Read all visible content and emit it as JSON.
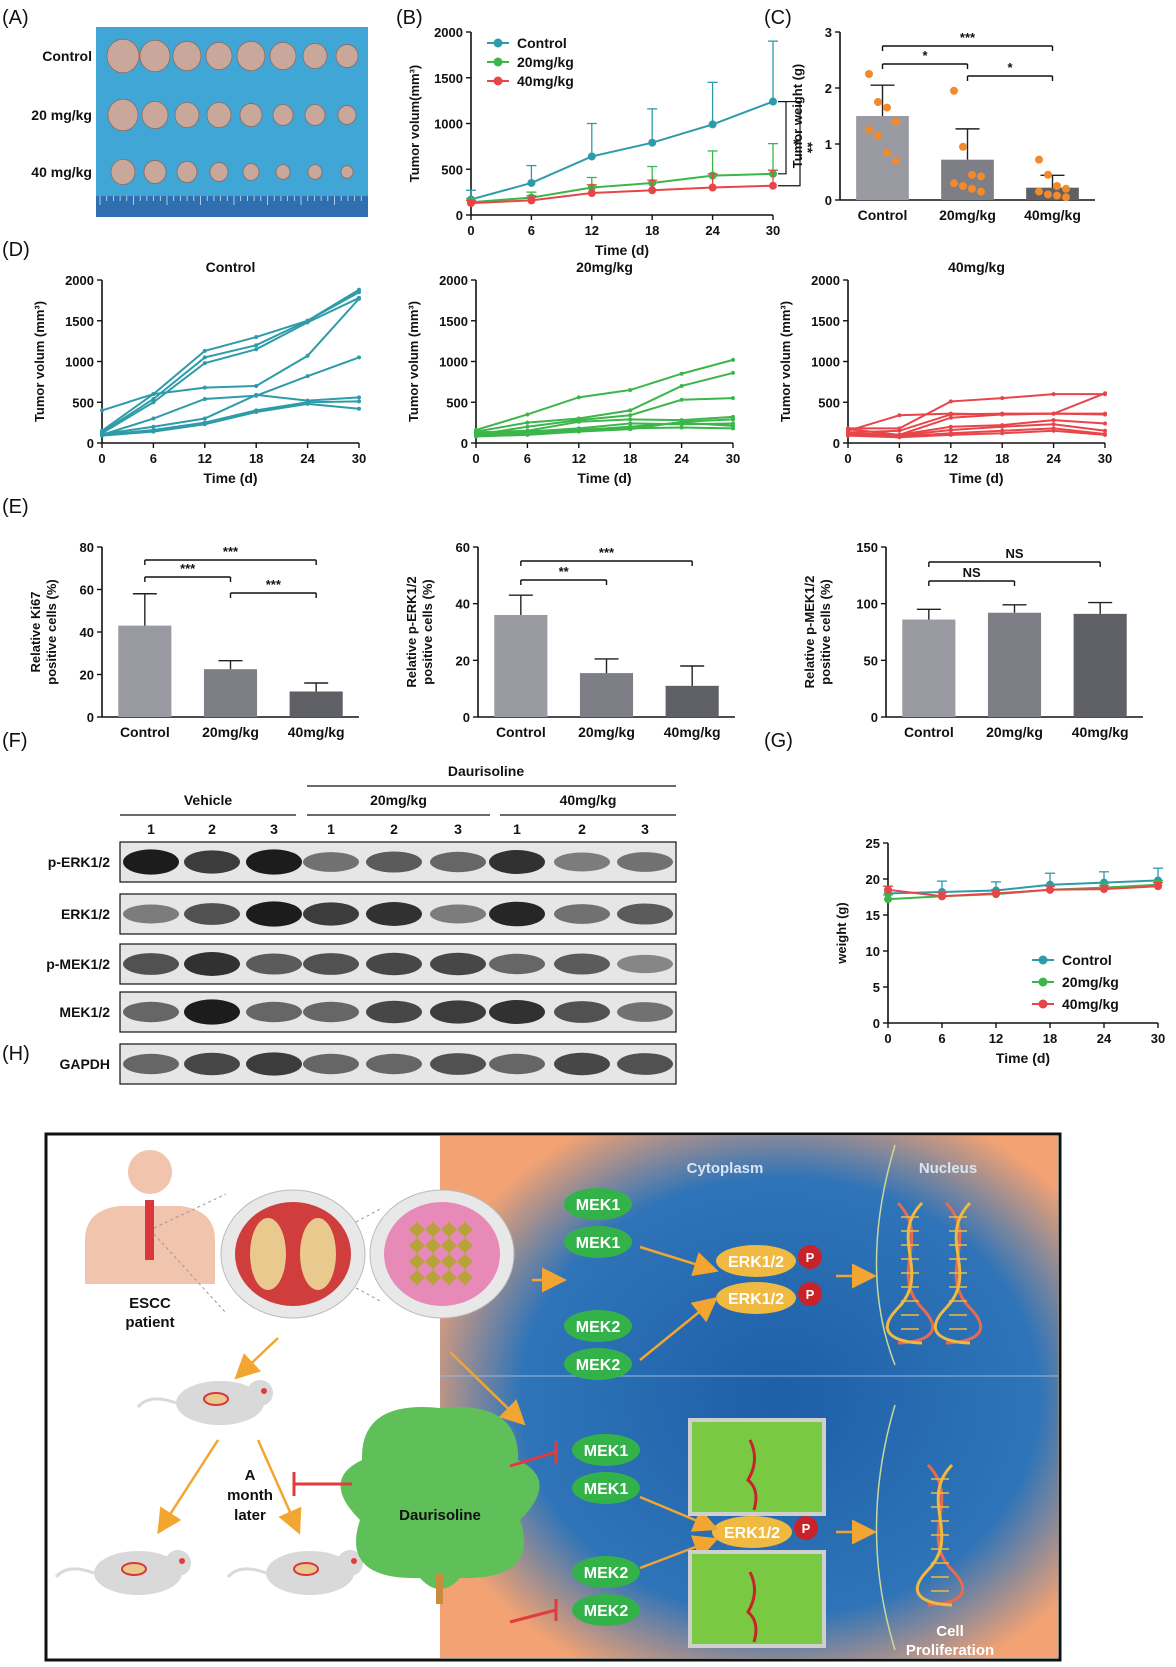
{
  "panel_labels": [
    "(A)",
    "(B)",
    "(C)",
    "(D)",
    "(E)",
    "(F)",
    "(G)",
    "(H)"
  ],
  "photo": {
    "rows": [
      "Control",
      "20 mg/kg",
      "40 mg/kg"
    ],
    "colors": {
      "background": "#3fa6d6",
      "ruler": "#2f6fb0",
      "tumor": "#c9a89b"
    }
  },
  "chart_data": [
    {
      "id": "B",
      "type": "line",
      "x": [
        0,
        6,
        12,
        18,
        24,
        30
      ],
      "series": [
        {
          "name": "Control",
          "color": "#2e9ba8",
          "values": [
            170,
            350,
            640,
            790,
            990,
            1240
          ],
          "err": [
            100,
            190,
            360,
            370,
            460,
            660
          ]
        },
        {
          "name": "20mg/kg",
          "color": "#3cb54a",
          "values": [
            140,
            190,
            300,
            350,
            430,
            450
          ],
          "err": [
            40,
            60,
            110,
            180,
            270,
            330
          ]
        },
        {
          "name": "40mg/kg",
          "color": "#e8454a",
          "values": [
            130,
            160,
            240,
            270,
            300,
            320
          ],
          "err": [
            30,
            50,
            90,
            110,
            150,
            170
          ]
        }
      ],
      "xlabel": "Time  (d)",
      "ylabel": "Tumor volum(mm³)",
      "ylim": [
        0,
        2000
      ],
      "yticks": [
        0,
        500,
        1000,
        1500,
        2000
      ],
      "annotations": [
        "*",
        "**"
      ],
      "legend": "top-left"
    },
    {
      "id": "C",
      "type": "bar",
      "categories": [
        "Control",
        "20mg/kg",
        "40mg/kg"
      ],
      "values": [
        1.5,
        0.72,
        0.22
      ],
      "err": [
        0.55,
        0.55,
        0.22
      ],
      "colors": [
        "#9a9aa2",
        "#7e7e86",
        "#5f5f66"
      ],
      "points": [
        [
          2.25,
          1.75,
          1.65,
          1.4,
          1.25,
          1.15,
          0.85,
          0.7
        ],
        [
          1.95,
          0.95,
          0.45,
          0.42,
          0.3,
          0.25,
          0.2,
          0.15
        ],
        [
          0.72,
          0.45,
          0.25,
          0.2,
          0.15,
          0.1,
          0.08,
          0.05
        ]
      ],
      "point_color": "#f08a2d",
      "ylabel": "Tumor weight  (g)",
      "ylim": [
        0,
        3
      ],
      "yticks": [
        0,
        1,
        2,
        3
      ],
      "significance": [
        {
          "from": 0,
          "to": 2,
          "label": "***"
        },
        {
          "from": 0,
          "to": 1,
          "label": "*"
        },
        {
          "from": 1,
          "to": 2,
          "label": "*"
        }
      ]
    },
    {
      "id": "D1",
      "type": "line",
      "title": "Control",
      "color": "#2e9ba8",
      "x": [
        0,
        6,
        12,
        18,
        24,
        30
      ],
      "series": [
        {
          "values": [
            150,
            600,
            1130,
            1300,
            1500,
            1880
          ]
        },
        {
          "values": [
            130,
            540,
            1050,
            1200,
            1500,
            1850
          ]
        },
        {
          "values": [
            120,
            500,
            980,
            1150,
            1480,
            1780
          ]
        },
        {
          "values": [
            400,
            600,
            680,
            700,
            1070,
            1770
          ]
        },
        {
          "values": [
            100,
            300,
            540,
            580,
            820,
            1050
          ]
        },
        {
          "values": [
            110,
            200,
            300,
            590,
            520,
            560
          ]
        },
        {
          "values": [
            100,
            160,
            250,
            400,
            500,
            510
          ]
        },
        {
          "values": [
            90,
            140,
            230,
            380,
            480,
            420
          ]
        }
      ],
      "xlabel": "Time  (d)",
      "ylabel": "Tumor volum  (mm³)",
      "ylim": [
        0,
        2000
      ],
      "yticks": [
        0,
        500,
        1000,
        1500,
        2000
      ]
    },
    {
      "id": "D2",
      "type": "line",
      "title": "20mg/kg",
      "color": "#3cb54a",
      "x": [
        0,
        6,
        12,
        18,
        24,
        30
      ],
      "series": [
        {
          "values": [
            160,
            350,
            560,
            650,
            850,
            1020
          ]
        },
        {
          "values": [
            140,
            250,
            300,
            400,
            700,
            860
          ]
        },
        {
          "values": [
            100,
            200,
            280,
            340,
            530,
            550
          ]
        },
        {
          "values": [
            130,
            150,
            260,
            290,
            280,
            320
          ]
        },
        {
          "values": [
            120,
            140,
            180,
            240,
            230,
            240
          ]
        },
        {
          "values": [
            110,
            130,
            160,
            200,
            250,
            210
          ]
        },
        {
          "values": [
            90,
            120,
            150,
            180,
            190,
            180
          ]
        },
        {
          "values": [
            80,
            100,
            140,
            170,
            260,
            290
          ]
        }
      ],
      "xlabel": "Time  (d)",
      "ylabel": "Tumor volum  (mm³)",
      "ylim": [
        0,
        2000
      ],
      "yticks": [
        0,
        500,
        1000,
        1500,
        2000
      ]
    },
    {
      "id": "D3",
      "type": "line",
      "title": "40mg/kg",
      "color": "#e8454a",
      "x": [
        0,
        6,
        12,
        18,
        24,
        30
      ],
      "series": [
        {
          "values": [
            180,
            180,
            510,
            550,
            600,
            600
          ]
        },
        {
          "values": [
            150,
            340,
            360,
            350,
            360,
            610
          ]
        },
        {
          "values": [
            130,
            150,
            350,
            360,
            360,
            360
          ]
        },
        {
          "values": [
            170,
            100,
            310,
            350,
            360,
            350
          ]
        },
        {
          "values": [
            120,
            100,
            200,
            220,
            280,
            240
          ]
        },
        {
          "values": [
            110,
            90,
            160,
            200,
            230,
            150
          ]
        },
        {
          "values": [
            100,
            80,
            120,
            150,
            180,
            110
          ]
        },
        {
          "values": [
            90,
            70,
            100,
            120,
            150,
            100
          ]
        }
      ],
      "xlabel": "Time  (d)",
      "ylabel": "Tumor volum  (mm³)",
      "ylim": [
        0,
        2000
      ],
      "yticks": [
        0,
        500,
        1000,
        1500,
        2000
      ]
    },
    {
      "id": "E1",
      "type": "bar",
      "categories": [
        "Control",
        "20mg/kg",
        "40mg/kg"
      ],
      "values": [
        43,
        22.5,
        12
      ],
      "err": [
        15,
        4,
        4
      ],
      "colors": [
        "#9a9aa2",
        "#7e7e86",
        "#5f5f66"
      ],
      "ylabel": "Relative Ki67 positive cells (%)",
      "ylim": [
        0,
        80
      ],
      "yticks": [
        0,
        20,
        40,
        60,
        80
      ],
      "significance": [
        {
          "from": 0,
          "to": 2,
          "label": "***"
        },
        {
          "from": 0,
          "to": 1,
          "label": "***"
        },
        {
          "from": 1,
          "to": 2,
          "label": "***"
        }
      ]
    },
    {
      "id": "E2",
      "type": "bar",
      "categories": [
        "Control",
        "20mg/kg",
        "40mg/kg"
      ],
      "values": [
        36,
        15.5,
        11
      ],
      "err": [
        7,
        5,
        7
      ],
      "colors": [
        "#9a9aa2",
        "#7e7e86",
        "#5f5f66"
      ],
      "ylabel": "Relative p-ERK1/2 positive cells (%)",
      "ylim": [
        0,
        60
      ],
      "yticks": [
        0,
        20,
        40,
        60
      ],
      "significance": [
        {
          "from": 0,
          "to": 2,
          "label": "***"
        },
        {
          "from": 0,
          "to": 1,
          "label": "**"
        }
      ]
    },
    {
      "id": "E3",
      "type": "bar",
      "categories": [
        "Control",
        "20mg/kg",
        "40mg/kg"
      ],
      "values": [
        86,
        92,
        91
      ],
      "err": [
        9,
        7,
        10
      ],
      "colors": [
        "#9a9aa2",
        "#7e7e86",
        "#5f5f66"
      ],
      "ylabel": "Relative p-MEK1/2 positive cells (%)",
      "ylim": [
        0,
        150
      ],
      "yticks": [
        0,
        50,
        100,
        150
      ],
      "significance": [
        {
          "from": 0,
          "to": 2,
          "label": "NS"
        },
        {
          "from": 0,
          "to": 1,
          "label": "NS"
        }
      ]
    },
    {
      "id": "G",
      "type": "line",
      "x": [
        0,
        6,
        12,
        18,
        24,
        30
      ],
      "series": [
        {
          "name": "Control",
          "color": "#2e9ba8",
          "values": [
            18,
            18.2,
            18.4,
            19.2,
            19.5,
            19.8
          ],
          "err": [
            1,
            1.5,
            1.2,
            1.6,
            1.5,
            1.7
          ]
        },
        {
          "name": "20mg/kg",
          "color": "#3cb54a",
          "values": [
            17.2,
            17.6,
            17.9,
            18.5,
            18.8,
            19.2
          ],
          "err": [
            0.6,
            0.6,
            0.6,
            0.6,
            0.6,
            0.6
          ]
        },
        {
          "name": "40mg/kg",
          "color": "#e8454a",
          "values": [
            18.5,
            17.6,
            18.0,
            18.5,
            18.6,
            19.0
          ],
          "err": [
            0.5,
            0.5,
            0.5,
            0.5,
            0.5,
            0.5
          ]
        }
      ],
      "xlabel": "Time  (d)",
      "ylabel": "weight  (g)",
      "ylim": [
        0,
        25
      ],
      "yticks": [
        0,
        5,
        10,
        15,
        20,
        25
      ],
      "legend": "bottom-right"
    }
  ],
  "western_blot": {
    "drug_label": "Daurisoline",
    "groups": [
      "Vehicle",
      "20mg/kg",
      "40mg/kg"
    ],
    "lanes": [
      "1",
      "2",
      "3",
      "1",
      "2",
      "3",
      "1",
      "2",
      "3"
    ],
    "rows": [
      "p-ERK1/2",
      "ERK1/2",
      "p-MEK1/2",
      "MEK1/2",
      "GAPDH"
    ]
  },
  "diagram": {
    "cytoplasm": "Cytoplasm",
    "nucleus": "Nucleus",
    "patient": "ESCC patient",
    "later": "A month later",
    "drug": "Daurisoline",
    "mek1": "MEK1",
    "mek2": "MEK2",
    "erk": "ERK1/2",
    "p": "P",
    "proliferation": "Cell Proliferation"
  }
}
